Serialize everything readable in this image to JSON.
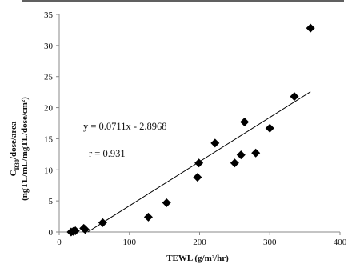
{
  "chart_data": {
    "type": "scatter",
    "xlabel": "TEWL (g/m²/hr)",
    "ylabel": "C",
    "ylabel_sub": "B30",
    "ylabel_rest": "/dose/area",
    "ylabel_line2": "(ngTL/mL/mgTL/dose/cm²)",
    "xlim": [
      0,
      400
    ],
    "ylim": [
      0,
      35
    ],
    "x_ticks": [
      0,
      100,
      200,
      300,
      400
    ],
    "y_ticks": [
      0,
      5,
      10,
      15,
      20,
      25,
      30,
      35
    ],
    "points": [
      {
        "x": 17,
        "y": 0.0
      },
      {
        "x": 20,
        "y": 0.1
      },
      {
        "x": 23,
        "y": 0.2
      },
      {
        "x": 35,
        "y": 0.6
      },
      {
        "x": 37,
        "y": 0.4
      },
      {
        "x": 62,
        "y": 1.5
      },
      {
        "x": 127,
        "y": 2.4
      },
      {
        "x": 153,
        "y": 4.7
      },
      {
        "x": 197,
        "y": 8.8
      },
      {
        "x": 199,
        "y": 11.1
      },
      {
        "x": 222,
        "y": 14.3
      },
      {
        "x": 250,
        "y": 11.1
      },
      {
        "x": 259,
        "y": 12.4
      },
      {
        "x": 264,
        "y": 17.7
      },
      {
        "x": 280,
        "y": 12.7
      },
      {
        "x": 300,
        "y": 16.7
      },
      {
        "x": 335,
        "y": 21.8
      },
      {
        "x": 358,
        "y": 32.8
      }
    ],
    "trendline": {
      "slope": 0.0711,
      "intercept": -2.8968,
      "x_start": 40.74,
      "x_end": 358
    },
    "annotations": {
      "equation": "y = 0.0711x - 2.8968",
      "correlation": "r = 0.931"
    },
    "grid": false,
    "legend": "none",
    "colors": {
      "marker": "#000000",
      "line": "#000000",
      "axis": "#888888"
    }
  }
}
